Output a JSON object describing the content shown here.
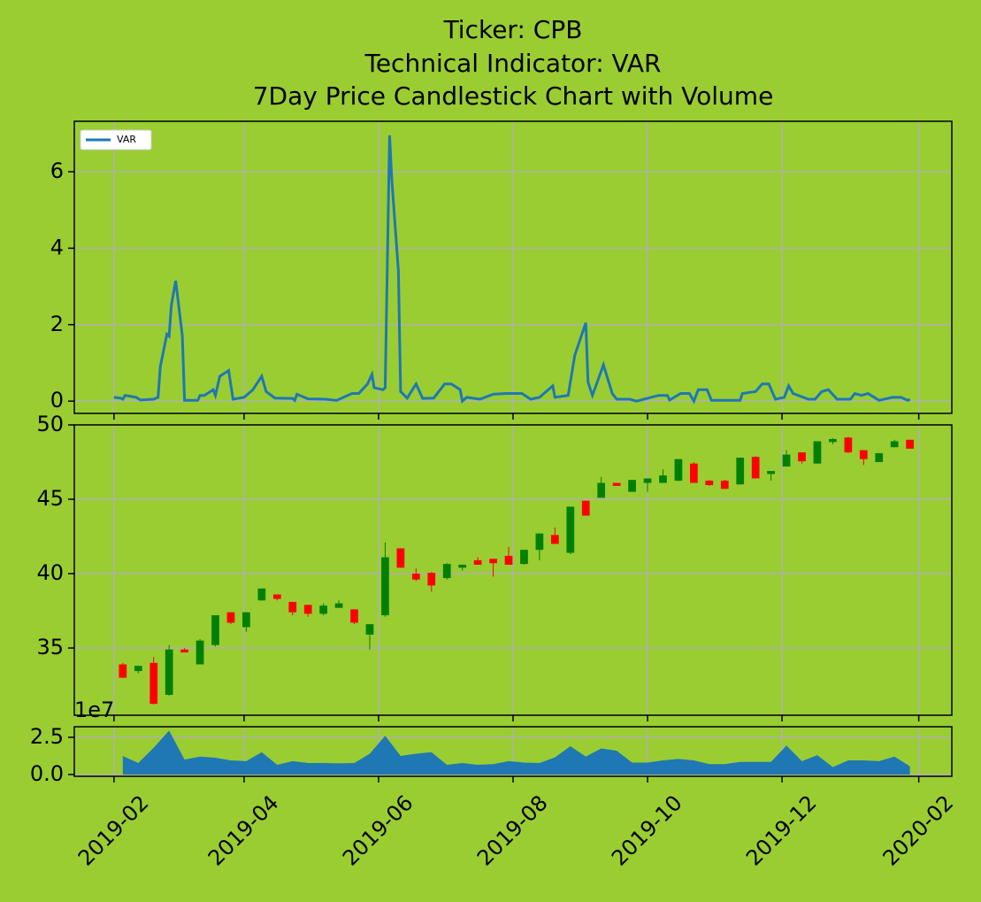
{
  "chart_data": [
    {
      "type": "line",
      "title": [
        "Ticker: CPB",
        "Technical Indicator: VAR",
        "7Day Price Candlestick Chart with Volume"
      ],
      "x": [
        "2019-02-01",
        "2019-02-04",
        "2019-02-05",
        "2019-02-06",
        "2019-02-11",
        "2019-02-13",
        "2019-02-19",
        "2019-02-21",
        "2019-02-22",
        "2019-02-25",
        "2019-02-26",
        "2019-02-27",
        "2019-03-01",
        "2019-03-04",
        "2019-03-05",
        "2019-03-11",
        "2019-03-12",
        "2019-03-14",
        "2019-03-18",
        "2019-03-19",
        "2019-03-21",
        "2019-03-25",
        "2019-03-27",
        "2019-04-01",
        "2019-04-02",
        "2019-04-05",
        "2019-04-09",
        "2019-04-11",
        "2019-04-15",
        "2019-04-23",
        "2019-04-24",
        "2019-04-25",
        "2019-04-30",
        "2019-05-08",
        "2019-05-13",
        "2019-05-20",
        "2019-05-23",
        "2019-05-27",
        "2019-05-29",
        "2019-05-30",
        "2019-06-03",
        "2019-06-04",
        "2019-06-06",
        "2019-06-07",
        "2019-06-10",
        "2019-06-11",
        "2019-06-14",
        "2019-06-18",
        "2019-06-21",
        "2019-06-26",
        "2019-07-01",
        "2019-07-04",
        "2019-07-08",
        "2019-07-09",
        "2019-07-11",
        "2019-07-17",
        "2019-07-23",
        "2019-07-29",
        "2019-08-05",
        "2019-08-09",
        "2019-08-13",
        "2019-08-19",
        "2019-08-20",
        "2019-08-26",
        "2019-08-29",
        "2019-09-03",
        "2019-09-04",
        "2019-09-06",
        "2019-09-11",
        "2019-09-15",
        "2019-09-17",
        "2019-09-23",
        "2019-09-26",
        "2019-10-06",
        "2019-10-10",
        "2019-10-11",
        "2019-10-16",
        "2019-10-20",
        "2019-10-22",
        "2019-10-24",
        "2019-10-28",
        "2019-10-30",
        "2019-11-12",
        "2019-11-13",
        "2019-11-19",
        "2019-11-22",
        "2019-11-25",
        "2019-11-28",
        "2019-12-02",
        "2019-12-04",
        "2019-12-06",
        "2019-12-13",
        "2019-12-16",
        "2019-12-19",
        "2019-12-22",
        "2019-12-26",
        "2020-01-01",
        "2020-01-03",
        "2020-01-06",
        "2020-01-09",
        "2020-01-14",
        "2020-01-20",
        "2020-01-24",
        "2020-01-27",
        "2020-01-28"
      ],
      "series": [
        {
          "name": "VAR",
          "color": "#1f77b4",
          "values": [
            0.1,
            0.08,
            0.05,
            0.15,
            0.1,
            0.03,
            0.05,
            0.1,
            0.9,
            1.75,
            1.7,
            2.5,
            3.15,
            1.7,
            0.02,
            0.02,
            0.15,
            0.15,
            0.3,
            0.15,
            0.65,
            0.8,
            0.05,
            0.1,
            0.15,
            0.3,
            0.65,
            0.25,
            0.08,
            0.07,
            0.02,
            0.18,
            0.06,
            0.05,
            0.02,
            0.2,
            0.2,
            0.45,
            0.7,
            0.35,
            0.3,
            0.35,
            6.95,
            5.8,
            3.4,
            0.25,
            0.08,
            0.45,
            0.07,
            0.08,
            0.45,
            0.45,
            0.3,
            0.0,
            0.1,
            0.05,
            0.18,
            0.2,
            0.2,
            0.05,
            0.1,
            0.4,
            0.1,
            0.15,
            1.2,
            2.05,
            0.5,
            0.15,
            0.95,
            0.2,
            0.05,
            0.05,
            0.0,
            0.15,
            0.15,
            0.03,
            0.2,
            0.2,
            0.0,
            0.3,
            0.3,
            0.02,
            0.02,
            0.2,
            0.25,
            0.45,
            0.45,
            0.05,
            0.1,
            0.4,
            0.2,
            0.05,
            0.05,
            0.25,
            0.3,
            0.05,
            0.05,
            0.2,
            0.15,
            0.2,
            0.02,
            0.1,
            0.1,
            0.02,
            0.05
          ]
        }
      ],
      "xlim": [
        "2019-01-14",
        "2020-02-16"
      ],
      "ylim": [
        -0.32,
        7.32
      ],
      "yticks": [
        0,
        2,
        4,
        6
      ],
      "grid": true,
      "legend": "upper left"
    },
    {
      "type": "candlestick",
      "x": [
        "2019-02-05",
        "2019-02-12",
        "2019-02-19",
        "2019-02-26",
        "2019-03-05",
        "2019-03-12",
        "2019-03-19",
        "2019-03-26",
        "2019-04-02",
        "2019-04-09",
        "2019-04-16",
        "2019-04-23",
        "2019-04-30",
        "2019-05-07",
        "2019-05-14",
        "2019-05-21",
        "2019-05-28",
        "2019-06-04",
        "2019-06-11",
        "2019-06-18",
        "2019-06-25",
        "2019-07-02",
        "2019-07-09",
        "2019-07-16",
        "2019-07-23",
        "2019-07-30",
        "2019-08-06",
        "2019-08-13",
        "2019-08-20",
        "2019-08-27",
        "2019-09-03",
        "2019-09-10",
        "2019-09-17",
        "2019-09-24",
        "2019-10-01",
        "2019-10-08",
        "2019-10-15",
        "2019-10-22",
        "2019-10-29",
        "2019-11-05",
        "2019-11-12",
        "2019-11-19",
        "2019-11-26",
        "2019-12-03",
        "2019-12-10",
        "2019-12-17",
        "2019-12-24",
        "2019-12-31",
        "2020-01-07",
        "2020-01-14",
        "2020-01-21",
        "2020-01-28"
      ],
      "open": [
        33.9,
        33.45,
        34.0,
        31.85,
        34.9,
        33.9,
        35.2,
        37.4,
        36.4,
        38.2,
        38.6,
        38.1,
        37.9,
        37.3,
        37.7,
        37.6,
        35.9,
        37.2,
        41.7,
        40.0,
        40.05,
        39.7,
        40.4,
        40.9,
        41.0,
        41.2,
        40.65,
        41.6,
        42.6,
        41.4,
        44.9,
        45.1,
        46.1,
        45.5,
        46.1,
        46.1,
        46.25,
        47.4,
        46.25,
        46.25,
        46.0,
        47.85,
        46.7,
        47.2,
        48.15,
        47.4,
        48.85,
        49.15,
        48.3,
        47.5,
        48.5,
        49.0
      ],
      "high": [
        34.0,
        33.8,
        34.4,
        35.2,
        35.0,
        35.6,
        37.2,
        37.4,
        37.4,
        39.0,
        38.6,
        38.1,
        37.9,
        38.0,
        38.2,
        37.6,
        36.6,
        42.1,
        41.7,
        40.35,
        40.1,
        40.7,
        40.6,
        41.1,
        41.0,
        41.8,
        41.6,
        42.7,
        43.1,
        44.5,
        44.9,
        46.5,
        46.1,
        46.3,
        46.4,
        47.0,
        47.7,
        47.5,
        46.3,
        46.3,
        47.8,
        47.9,
        46.9,
        48.3,
        48.15,
        48.9,
        49.1,
        49.2,
        48.3,
        48.1,
        49.0,
        49.0
      ],
      "low": [
        33.0,
        33.3,
        31.2,
        31.8,
        34.7,
        33.9,
        35.1,
        36.6,
        36.1,
        38.2,
        38.2,
        37.2,
        37.1,
        37.2,
        37.7,
        36.6,
        34.9,
        37.1,
        40.4,
        39.5,
        38.8,
        39.6,
        40.2,
        40.6,
        39.8,
        40.6,
        40.6,
        40.9,
        42.0,
        41.3,
        43.9,
        45.1,
        45.9,
        45.5,
        45.5,
        46.1,
        46.2,
        46.1,
        45.9,
        45.7,
        46.0,
        46.4,
        46.25,
        47.2,
        47.4,
        47.4,
        48.7,
        48.1,
        47.3,
        47.5,
        48.5,
        48.4
      ],
      "close": [
        33.0,
        33.8,
        31.25,
        34.9,
        34.7,
        35.5,
        37.2,
        36.7,
        37.4,
        39.0,
        38.3,
        37.4,
        37.3,
        37.85,
        38.0,
        36.7,
        36.6,
        41.1,
        40.4,
        39.6,
        39.2,
        40.65,
        40.6,
        40.6,
        40.7,
        40.6,
        41.6,
        42.7,
        42.0,
        44.5,
        43.9,
        46.1,
        45.9,
        46.3,
        46.4,
        46.6,
        47.7,
        46.1,
        45.95,
        45.7,
        47.8,
        46.4,
        46.9,
        48.0,
        47.55,
        48.9,
        49.05,
        48.15,
        47.7,
        48.1,
        48.9,
        48.4
      ],
      "up_color": "#008000",
      "down_color": "#ff0000",
      "xlim": [
        "2019-01-14",
        "2020-02-16"
      ],
      "ylim": [
        30.48,
        50
      ],
      "yticks": [
        35,
        40,
        45,
        50
      ],
      "grid": true
    },
    {
      "type": "area",
      "x": [
        "2019-02-05",
        "2019-02-12",
        "2019-02-19",
        "2019-02-26",
        "2019-03-05",
        "2019-03-12",
        "2019-03-19",
        "2019-03-26",
        "2019-04-02",
        "2019-04-09",
        "2019-04-16",
        "2019-04-23",
        "2019-04-30",
        "2019-05-07",
        "2019-05-14",
        "2019-05-21",
        "2019-05-28",
        "2019-06-04",
        "2019-06-11",
        "2019-06-18",
        "2019-06-25",
        "2019-07-02",
        "2019-07-09",
        "2019-07-16",
        "2019-07-23",
        "2019-07-30",
        "2019-08-06",
        "2019-08-13",
        "2019-08-20",
        "2019-08-27",
        "2019-09-03",
        "2019-09-10",
        "2019-09-17",
        "2019-09-24",
        "2019-10-01",
        "2019-10-08",
        "2019-10-15",
        "2019-10-22",
        "2019-10-29",
        "2019-11-05",
        "2019-11-12",
        "2019-11-19",
        "2019-11-26",
        "2019-12-03",
        "2019-12-10",
        "2019-12-17",
        "2019-12-24",
        "2019-12-31",
        "2020-01-07",
        "2020-01-14",
        "2020-01-21",
        "2020-01-28"
      ],
      "values": [
        1.25,
        0.77,
        1.8,
        2.95,
        1.0,
        1.2,
        1.13,
        0.95,
        0.9,
        1.5,
        0.65,
        0.9,
        0.77,
        0.77,
        0.75,
        0.77,
        1.4,
        2.6,
        1.25,
        1.4,
        1.5,
        0.65,
        0.77,
        0.65,
        0.7,
        0.9,
        0.8,
        0.77,
        1.15,
        1.9,
        1.2,
        1.75,
        1.6,
        0.8,
        0.8,
        0.95,
        1.05,
        0.95,
        0.7,
        0.7,
        0.85,
        0.85,
        0.85,
        1.95,
        0.9,
        1.3,
        0.5,
        0.95,
        0.95,
        0.9,
        1.2,
        0.55
      ],
      "color": "#1f77b4",
      "offset_label": "1e7",
      "xlim": [
        "2019-01-14",
        "2020-02-16"
      ],
      "xticks": [
        "2019-02",
        "2019-04",
        "2019-06",
        "2019-08",
        "2019-10",
        "2019-12",
        "2020-02"
      ],
      "ylim": [
        -0.12,
        3.21
      ],
      "yticks": [
        {
          "value": 0,
          "label": "0.0"
        },
        2.5
      ],
      "grid": true
    }
  ]
}
